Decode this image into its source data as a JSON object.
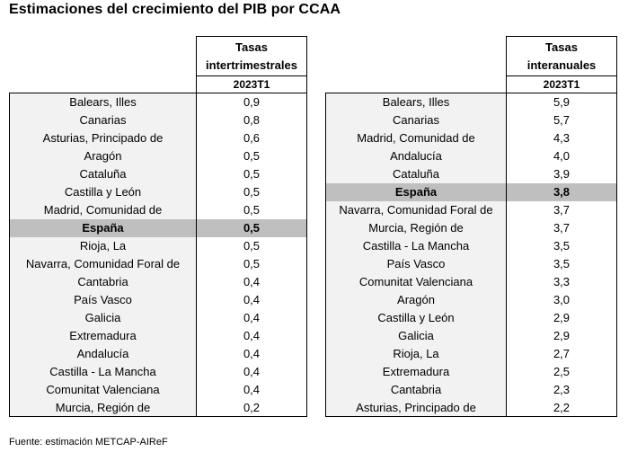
{
  "title": "Estimaciones del crecimiento del PIB por CCAA",
  "left_table": {
    "header_line1": "Tasas",
    "header_line2": "intertrimestrales",
    "period": "2023T1",
    "rows": [
      {
        "name": "Balears, Illes",
        "value": "0,9"
      },
      {
        "name": "Canarias",
        "value": "0,8"
      },
      {
        "name": "Asturias, Principado de",
        "value": "0,6"
      },
      {
        "name": "Aragón",
        "value": "0,5"
      },
      {
        "name": "Cataluña",
        "value": "0,5"
      },
      {
        "name": "Castilla y León",
        "value": "0,5"
      },
      {
        "name": "Madrid, Comunidad de",
        "value": "0,5"
      },
      {
        "name": "España",
        "value": "0,5",
        "highlight": true
      },
      {
        "name": "Rioja, La",
        "value": "0,5"
      },
      {
        "name": "Navarra, Comunidad Foral de",
        "value": "0,5"
      },
      {
        "name": "Cantabria",
        "value": "0,4"
      },
      {
        "name": "País Vasco",
        "value": "0,4"
      },
      {
        "name": "Galicia",
        "value": "0,4"
      },
      {
        "name": "Extremadura",
        "value": "0,4"
      },
      {
        "name": "Andalucía",
        "value": "0,4"
      },
      {
        "name": "Castilla - La Mancha",
        "value": "0,4"
      },
      {
        "name": "Comunitat Valenciana",
        "value": "0,4"
      },
      {
        "name": "Murcia, Región de",
        "value": "0,2"
      }
    ]
  },
  "right_table": {
    "header_line1": "Tasas",
    "header_line2": "interanuales",
    "period": "2023T1",
    "rows": [
      {
        "name": "Balears, Illes",
        "value": "5,9"
      },
      {
        "name": "Canarias",
        "value": "5,7"
      },
      {
        "name": "Madrid, Comunidad de",
        "value": "4,3"
      },
      {
        "name": "Andalucía",
        "value": "4,0"
      },
      {
        "name": "Cataluña",
        "value": "3,9"
      },
      {
        "name": "España",
        "value": "3,8",
        "highlight": true
      },
      {
        "name": "Navarra, Comunidad Foral de",
        "value": "3,7"
      },
      {
        "name": "Murcia, Región de",
        "value": "3,7"
      },
      {
        "name": "Castilla - La Mancha",
        "value": "3,5"
      },
      {
        "name": "País Vasco",
        "value": "3,5"
      },
      {
        "name": "Comunitat Valenciana",
        "value": "3,3"
      },
      {
        "name": "Aragón",
        "value": "3,0"
      },
      {
        "name": "Castilla y León",
        "value": "2,9"
      },
      {
        "name": "Galicia",
        "value": "2,9"
      },
      {
        "name": "Rioja, La",
        "value": "2,7"
      },
      {
        "name": "Extremadura",
        "value": "2,5"
      },
      {
        "name": "Cantabria",
        "value": "2,3"
      },
      {
        "name": "Asturias, Principado de",
        "value": "2,2"
      }
    ]
  },
  "colors": {
    "region_bg": "#f2f2f2",
    "highlight_bg": "#bfbfbf"
  },
  "source": "Fuente: estimación METCAP-AIReF"
}
